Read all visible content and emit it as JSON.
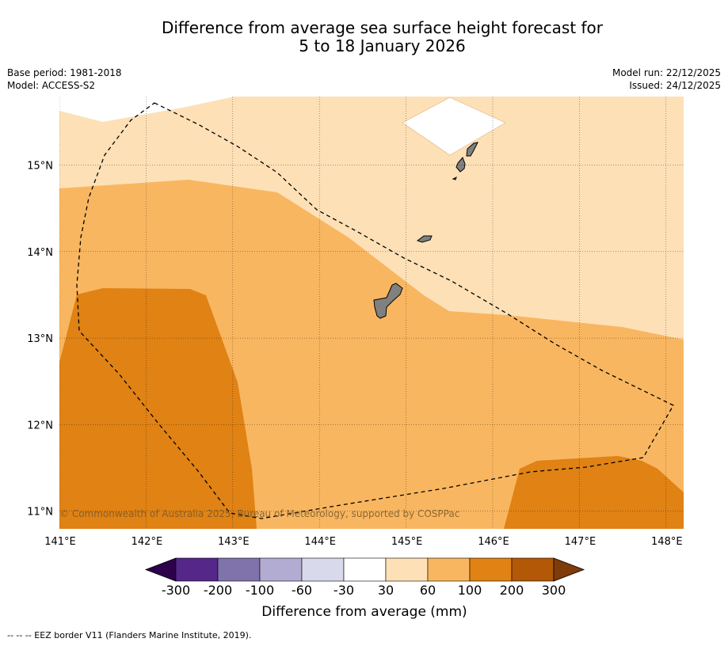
{
  "title": {
    "line1": "Difference from average sea surface height forecast for",
    "line2": "5 to 18 January 2026"
  },
  "meta": {
    "base_period": "Base period: 1981-2018",
    "model": "Model: ACCESS-S2",
    "model_run": "Model run: 22/12/2025",
    "issued": "Issued: 24/12/2025"
  },
  "map": {
    "region": "Guam / Northern Mariana Islands",
    "lon_range": [
      141,
      148.2
    ],
    "lat_range": [
      10.8,
      15.8
    ],
    "lon_ticks": [
      {
        "value": 141,
        "label": "141°E"
      },
      {
        "value": 142,
        "label": "142°E"
      },
      {
        "value": 143,
        "label": "143°E"
      },
      {
        "value": 144,
        "label": "144°E"
      },
      {
        "value": 145,
        "label": "145°E"
      },
      {
        "value": 146,
        "label": "146°E"
      },
      {
        "value": 147,
        "label": "147°E"
      },
      {
        "value": 148,
        "label": "148°E"
      }
    ],
    "lat_ticks": [
      {
        "value": 15,
        "label": "15°N"
      },
      {
        "value": 14,
        "label": "14°N"
      },
      {
        "value": 13,
        "label": "13°N"
      },
      {
        "value": 12,
        "label": "12°N"
      },
      {
        "value": 11,
        "label": "11°N"
      }
    ],
    "copyright": "© Commonwealth of Australia 2025, Bureau of Meteorology, supported by COSPPac",
    "colors": {
      "band_30_60": "#fde0b6",
      "band_60_100": "#f9b660",
      "band_100_200": "#e08214",
      "land": "#808080",
      "no_data": "#ffffff"
    }
  },
  "colorbar": {
    "title": "Difference from average (mm)",
    "labels": [
      "-300",
      "-200",
      "-100",
      "-60",
      "-30",
      "30",
      "60",
      "100",
      "200",
      "300"
    ],
    "colors": [
      "#2d004b",
      "#542788",
      "#8073ac",
      "#b2abd2",
      "#d8daeb",
      "#ffffff",
      "#fee0b6",
      "#f9b660",
      "#e08214",
      "#b35806",
      "#7f3b08"
    ]
  },
  "footer": {
    "legend_text": "--  --  -- EEZ border V11 (Flanders Marine Institute, 2019)."
  }
}
